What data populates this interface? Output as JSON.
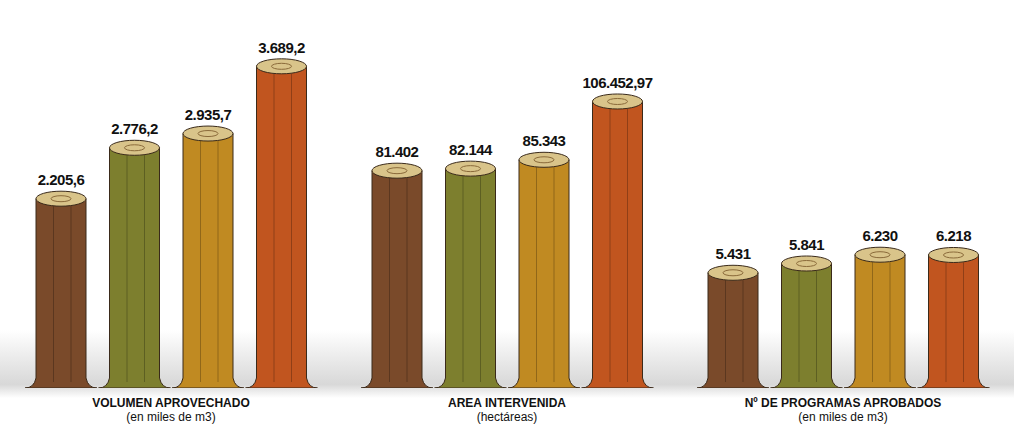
{
  "chart_data": [
    {
      "type": "bar",
      "title": "VOLUMEN APROVECHADO",
      "subtitle": "(en miles de m3)",
      "categories": [
        null,
        null,
        null,
        null
      ],
      "values": [
        2205.6,
        2776.2,
        2935.7,
        3689.2
      ],
      "value_labels": [
        "2.205,6",
        "2.776,2",
        "2.935,7",
        "3.689,2"
      ],
      "colors": [
        "#7a4a2a",
        "#7d7f2e",
        "#c08a22",
        "#c1551f"
      ],
      "ylim": [
        0,
        3900
      ],
      "data_labels": true,
      "tick_labels": false,
      "grid": false
    },
    {
      "type": "bar",
      "title": "AREA INTERVENIDA",
      "subtitle": "(hectáreas)",
      "categories": [
        null,
        null,
        null,
        null
      ],
      "values": [
        81402,
        82144,
        85343,
        106452.97
      ],
      "value_labels": [
        "81.402",
        "82.144",
        "85.343",
        "106.452,97"
      ],
      "colors": [
        "#7a4a2a",
        "#7d7f2e",
        "#c08a22",
        "#c1551f"
      ],
      "ylim": [
        0,
        126000
      ],
      "data_labels": true,
      "tick_labels": false,
      "grid": false
    },
    {
      "type": "bar",
      "title": "Nº DE PROGRAMAS APROBADOS",
      "subtitle": "(en miles de m3)",
      "categories": [
        null,
        null,
        null,
        null
      ],
      "values": [
        5431,
        5841,
        6230,
        6218
      ],
      "value_labels": [
        "5.431",
        "5.841",
        "6.230",
        "6.218"
      ],
      "colors": [
        "#7a4a2a",
        "#7d7f2e",
        "#c08a22",
        "#c1551f"
      ],
      "ylim": [
        0,
        15400
      ],
      "data_labels": true,
      "tick_labels": false,
      "grid": false
    }
  ]
}
